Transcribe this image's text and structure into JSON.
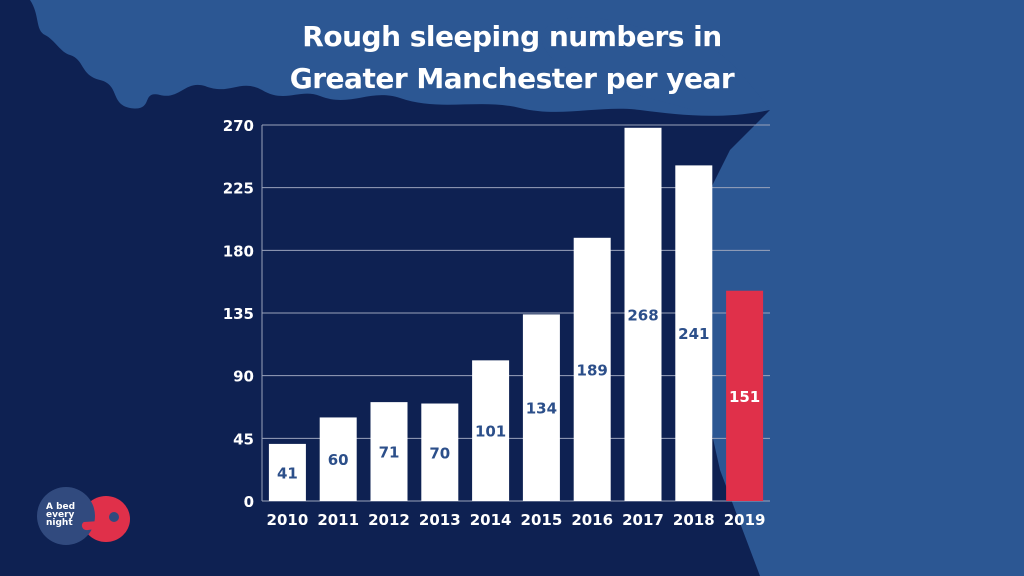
{
  "header": {
    "title_line1": "Rough sleeping numbers in",
    "title_line2": "Greater Manchester per year"
  },
  "logo": {
    "text_line1": "A bed",
    "text_line2": "every",
    "text_line3": "night",
    "colors": {
      "circle": "#314a7e",
      "accent": "#e0304a"
    }
  },
  "colors": {
    "background": "#0e2152",
    "background_light": "#2c5793",
    "bar": "#ffffff",
    "bar_highlight": "#e0304a",
    "bar_label": "#2c4f8a",
    "bar_label_highlight": "#ffffff",
    "axis_text": "#ffffff",
    "grid": "#9aa3bb"
  },
  "chart_data": {
    "type": "bar",
    "title": "Rough sleeping numbers in Greater Manchester per year",
    "categories": [
      "2010",
      "2011",
      "2012",
      "2013",
      "2014",
      "2015",
      "2016",
      "2017",
      "2018",
      "2019"
    ],
    "values": [
      41,
      60,
      71,
      70,
      101,
      134,
      189,
      268,
      241,
      151
    ],
    "highlight_index": 9,
    "xlabel": "",
    "ylabel": "",
    "ylim": [
      0,
      270
    ],
    "yticks": [
      0,
      45,
      90,
      135,
      180,
      225,
      270
    ],
    "grid": true,
    "data_labels": true
  }
}
